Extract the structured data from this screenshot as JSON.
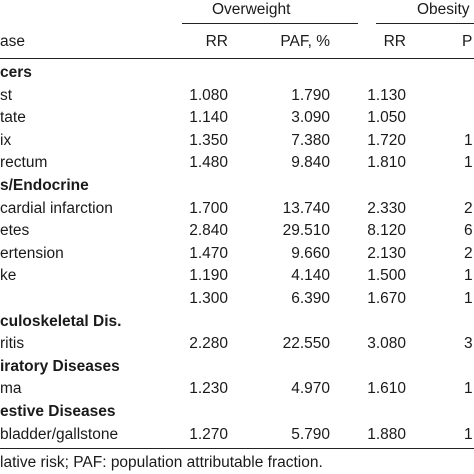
{
  "header": {
    "group1": "Overweight",
    "group2": "Obesity",
    "col_disease": "ase",
    "col_rr1": "RR",
    "col_paf1": "PAF, %",
    "col_rr2": "RR",
    "col_paf2": "P"
  },
  "rows": [
    {
      "label": "cers",
      "section": true
    },
    {
      "label": "st",
      "rr1": "1.080",
      "paf1": "1.790",
      "rr2": "1.130",
      "paf2": ""
    },
    {
      "label": "tate",
      "rr1": "1.140",
      "paf1": "3.090",
      "rr2": "1.050",
      "paf2": ""
    },
    {
      "label": "ix",
      "rr1": "1.350",
      "paf1": "7.380",
      "rr2": "1.720",
      "paf2": "1"
    },
    {
      "label": "rectum",
      "rr1": "1.480",
      "paf1": "9.840",
      "rr2": "1.810",
      "paf2": "1"
    },
    {
      "label": "s/Endocrine",
      "section": true
    },
    {
      "label": "cardial infarction",
      "rr1": "1.700",
      "paf1": "13.740",
      "rr2": "2.330",
      "paf2": "2"
    },
    {
      "label": "etes",
      "rr1": "2.840",
      "paf1": "29.510",
      "rr2": "8.120",
      "paf2": "6"
    },
    {
      "label": "ertension",
      "rr1": "1.470",
      "paf1": "9.660",
      "rr2": "2.130",
      "paf2": "2"
    },
    {
      "label": "ke",
      "rr1": "1.190",
      "paf1": "4.140",
      "rr2": "1.500",
      "paf2": "1"
    },
    {
      "label": "",
      "rr1": "1.300",
      "paf1": "6.390",
      "rr2": "1.670",
      "paf2": "1"
    },
    {
      "label": "culoskeletal Dis.",
      "section": true
    },
    {
      "label": "ritis",
      "rr1": "2.280",
      "paf1": "22.550",
      "rr2": "3.080",
      "paf2": "3"
    },
    {
      "label": "iratory Diseases",
      "section": true
    },
    {
      "label": "ma",
      "rr1": "1.230",
      "paf1": "4.970",
      "rr2": "1.610",
      "paf2": "1"
    },
    {
      "label": "estive Diseases",
      "section": true
    },
    {
      "label": "bladder/gallstone",
      "rr1": "1.270",
      "paf1": "5.790",
      "rr2": "1.880",
      "paf2": "1"
    }
  ],
  "footnote": "lative risk; PAF: population attributable fraction."
}
